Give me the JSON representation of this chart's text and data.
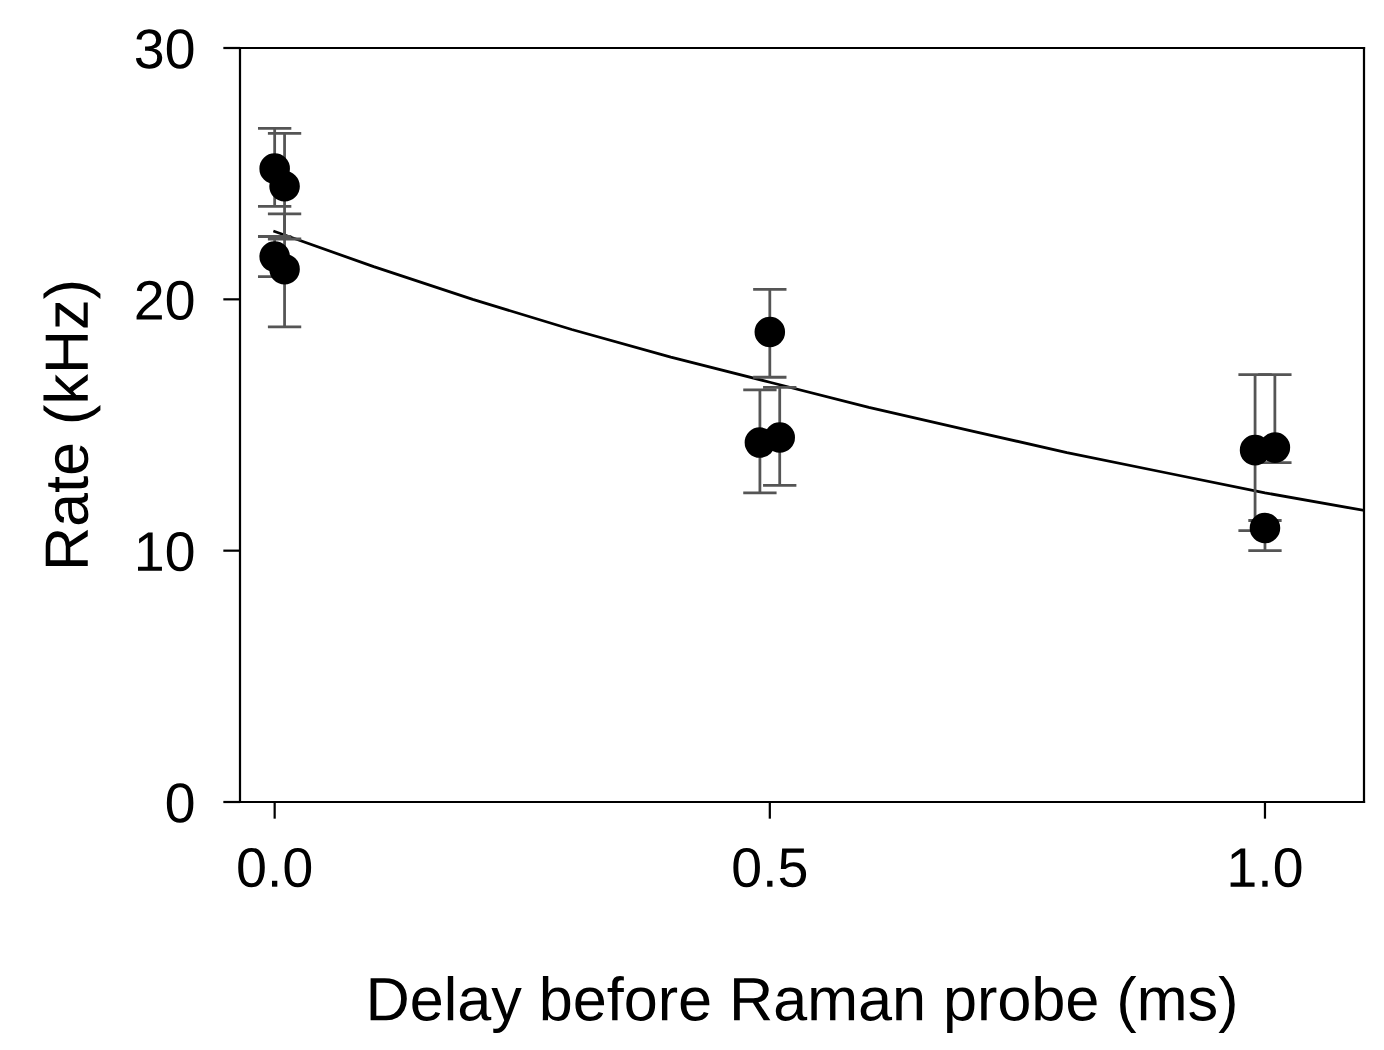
{
  "chart_data": {
    "type": "scatter",
    "xlabel": "Delay before Raman probe (ms)",
    "ylabel": "Rate (kHz)",
    "xlim": [
      -0.035,
      1.1
    ],
    "ylim": [
      0,
      30
    ],
    "xticks": [
      {
        "value": 0,
        "label": "0.0"
      },
      {
        "value": 0.5,
        "label": "0.5"
      },
      {
        "value": 1.0,
        "label": "1.0"
      }
    ],
    "yticks": [
      0,
      10,
      20,
      30
    ],
    "grid": false,
    "legend": false,
    "series": [
      {
        "color": "#000000",
        "marker": "circle",
        "x": [
          0,
          0.01,
          0,
          0.01,
          0.49,
          0.5,
          0.51,
          0.99,
          1.0,
          1.01
        ],
        "values": [
          25.2,
          24.5,
          21.7,
          21.2,
          14.3,
          18.7,
          14.5,
          14.0,
          10.9,
          14.1
        ],
        "errors": [
          [
            23.7,
            26.8
          ],
          [
            22.4,
            26.6
          ],
          [
            20.9,
            22.5
          ],
          [
            18.9,
            23.4
          ],
          [
            12.3,
            16.4
          ],
          [
            16.9,
            20.4
          ],
          [
            12.6,
            16.5
          ],
          [
            10.8,
            17.0
          ],
          [
            10.0,
            11.2
          ],
          [
            13.5,
            17.0
          ]
        ]
      },
      {
        "type": "line",
        "color": "#000000",
        "marker": "none",
        "line_style": "solid",
        "x": [
          0,
          0.1,
          0.2,
          0.3,
          0.4,
          0.5,
          0.6,
          0.7,
          0.8,
          0.9,
          1.0,
          1.1
        ],
        "values": [
          22.7,
          21.3,
          20.0,
          18.8,
          17.7,
          16.7,
          15.7,
          14.8,
          13.9,
          13.1,
          12.3,
          11.6
        ]
      }
    ]
  }
}
